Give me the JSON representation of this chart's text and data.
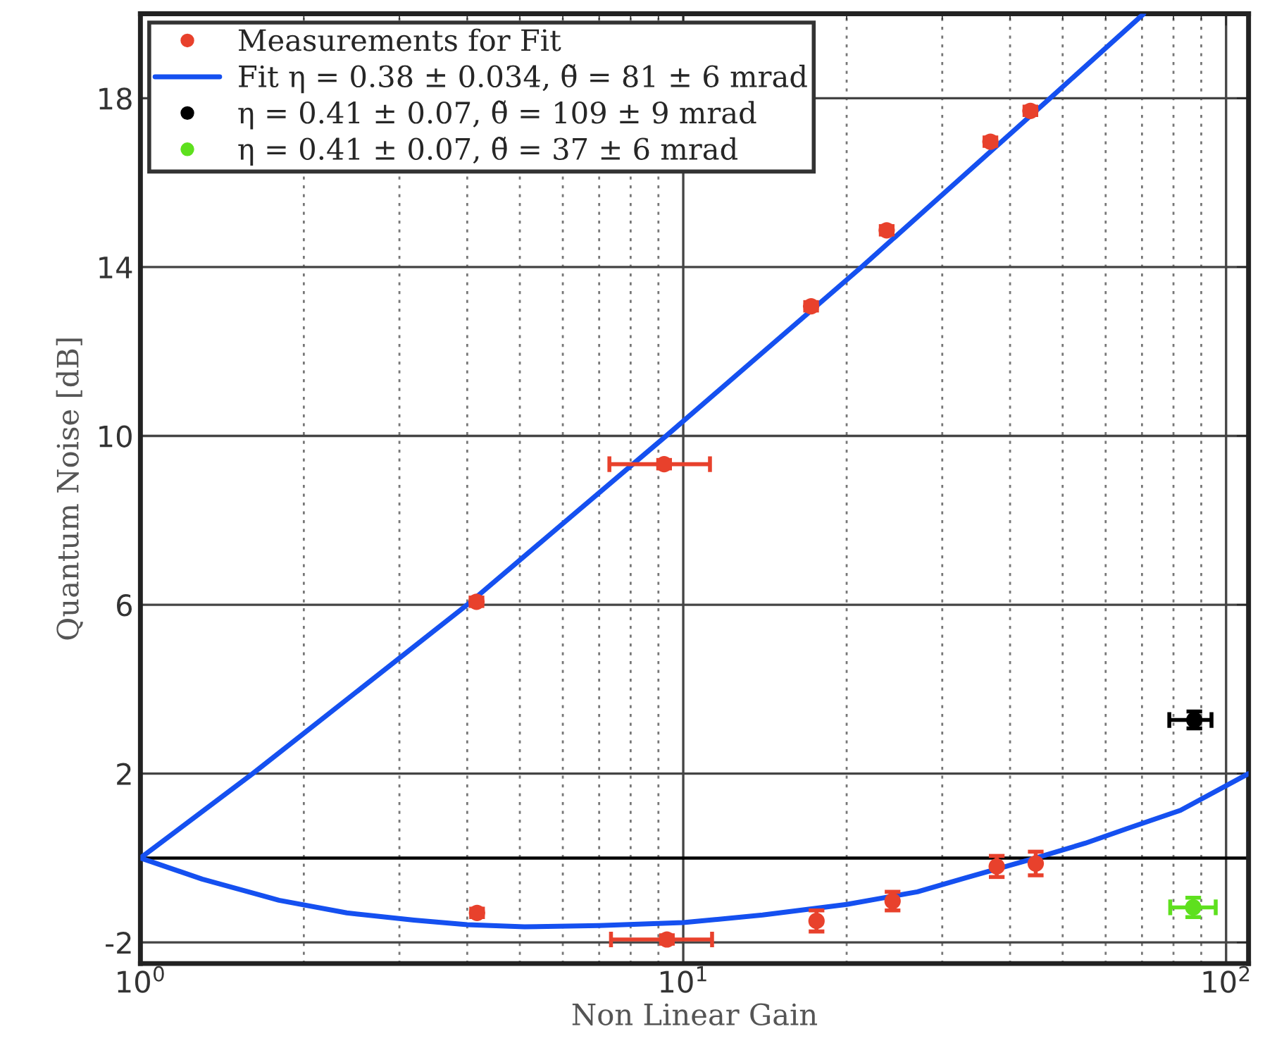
{
  "chart_data": {
    "type": "scatter",
    "xlabel": "Non Linear Gain",
    "ylabel": "Quantum Noise [dB]",
    "log": "x",
    "xlim": [
      1,
      110
    ],
    "ylim": [
      -2.5,
      20
    ],
    "xticks": [
      {
        "value": 1,
        "label": "10$^{0}$"
      },
      {
        "value": 10,
        "label": "10$^{1}$"
      },
      {
        "value": 100,
        "label": "10$^{2}$"
      }
    ],
    "yticks": [
      -2,
      2,
      6,
      10,
      14,
      18
    ],
    "grid": true,
    "legend": "top left",
    "ref_lines": [
      {
        "axis": "y",
        "value": 0,
        "color": "#000000"
      }
    ],
    "series": [
      {
        "name": "Measurements for Fit",
        "color": "#e8412c",
        "marker": "circle",
        "x": [
          4.16,
          9.22,
          17.2,
          23.7,
          36.8,
          43.6,
          4.17,
          9.33,
          17.6,
          24.3,
          37.8,
          44.6
        ],
        "values": [
          6.07,
          9.33,
          13.07,
          14.87,
          16.97,
          17.7,
          -1.3,
          -1.93,
          -1.49,
          -1.02,
          -0.2,
          -0.13
        ],
        "errors": [
          0.1,
          0.1,
          0.1,
          0.1,
          0.1,
          0.1,
          0.1,
          0.1,
          0.25,
          0.22,
          0.25,
          0.28
        ],
        "xerrors": [
          null,
          [
            7.31,
            11.2
          ],
          null,
          null,
          null,
          null,
          null,
          [
            7.36,
            11.3
          ],
          null,
          null,
          null,
          null
        ]
      },
      {
        "name": "Fit η = 0.38 ± 0.034, θ̃ = 81 ± 6 mrad",
        "type": "line",
        "color": "#1550f0",
        "line_style": "solid",
        "x": [
          1,
          1.61,
          4.0,
          9.3,
          21.3,
          47.4,
          70.5,
          null,
          1,
          1.3,
          1.8,
          2.4,
          3.19,
          4.0,
          5.1,
          7.0,
          10,
          14,
          20,
          27,
          33.1,
          44.6,
          55,
          65.8,
          82.4,
          110
        ],
        "values": [
          0,
          2,
          6,
          10,
          14,
          18,
          20,
          null,
          0,
          -0.5,
          -1.0,
          -1.3,
          -1.47,
          -1.58,
          -1.63,
          -1.6,
          -1.53,
          -1.35,
          -1.1,
          -0.8,
          -0.47,
          0,
          0.35,
          0.7,
          1.13,
          2.0
        ]
      },
      {
        "name": "η = 0.41 ± 0.07, θ̃ = 109 ± 9 mrad",
        "color": "#000000",
        "marker": "circle",
        "x": [
          87.4
        ],
        "values": [
          3.27
        ],
        "errors": [
          0.2
        ],
        "xerrors": [
          [
            78.6,
            94.0
          ]
        ]
      },
      {
        "name": "η = 0.41 ± 0.07, θ̃ = 37 ± 6 mrad",
        "color": "#5ee01e",
        "marker": "circle",
        "x": [
          87.0
        ],
        "values": [
          -1.17
        ],
        "errors": [
          0.23
        ],
        "xerrors": [
          [
            78.9,
            95.7
          ]
        ]
      }
    ]
  }
}
